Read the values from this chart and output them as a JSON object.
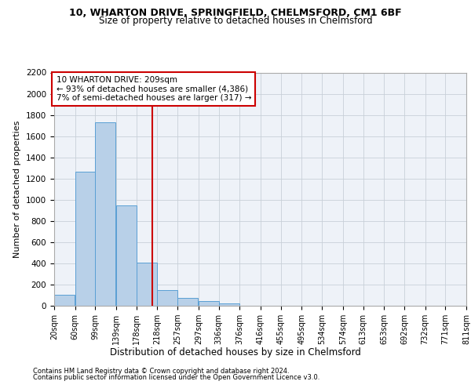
{
  "title_line1": "10, WHARTON DRIVE, SPRINGFIELD, CHELMSFORD, CM1 6BF",
  "title_line2": "Size of property relative to detached houses in Chelmsford",
  "xlabel": "Distribution of detached houses by size in Chelmsford",
  "ylabel": "Number of detached properties",
  "footnote1": "Contains HM Land Registry data © Crown copyright and database right 2024.",
  "footnote2": "Contains public sector information licensed under the Open Government Licence v3.0.",
  "bar_left_edges": [
    20,
    60,
    99,
    139,
    178,
    218,
    257,
    297,
    336,
    376,
    416,
    455,
    495,
    534,
    574,
    613,
    653,
    692,
    732,
    771
  ],
  "bar_widths": [
    39,
    39,
    39,
    39,
    39,
    39,
    39,
    39,
    39,
    39,
    39,
    39,
    39,
    39,
    39,
    39,
    39,
    39,
    39,
    39
  ],
  "bar_heights": [
    105,
    1265,
    1730,
    950,
    410,
    150,
    75,
    45,
    25,
    0,
    0,
    0,
    0,
    0,
    0,
    0,
    0,
    0,
    0,
    0
  ],
  "bar_color": "#b8d0e8",
  "bar_edge_color": "#5a9fd4",
  "property_line_x": 209,
  "property_line_color": "#cc0000",
  "annotation_box_text": "10 WHARTON DRIVE: 209sqm\n← 93% of detached houses are smaller (4,386)\n7% of semi-detached houses are larger (317) →",
  "annotation_box_color": "#cc0000",
  "grid_color": "#c8d0d8",
  "bg_color": "#eef2f8",
  "ylim": [
    0,
    2200
  ],
  "xlim": [
    20,
    811
  ],
  "yticks": [
    0,
    200,
    400,
    600,
    800,
    1000,
    1200,
    1400,
    1600,
    1800,
    2000,
    2200
  ],
  "xtick_labels": [
    "20sqm",
    "60sqm",
    "99sqm",
    "139sqm",
    "178sqm",
    "218sqm",
    "257sqm",
    "297sqm",
    "336sqm",
    "376sqm",
    "416sqm",
    "455sqm",
    "495sqm",
    "534sqm",
    "574sqm",
    "613sqm",
    "653sqm",
    "692sqm",
    "732sqm",
    "771sqm",
    "811sqm"
  ],
  "xtick_positions": [
    20,
    60,
    99,
    139,
    178,
    218,
    257,
    297,
    336,
    376,
    416,
    455,
    495,
    534,
    574,
    613,
    653,
    692,
    732,
    771,
    811
  ]
}
